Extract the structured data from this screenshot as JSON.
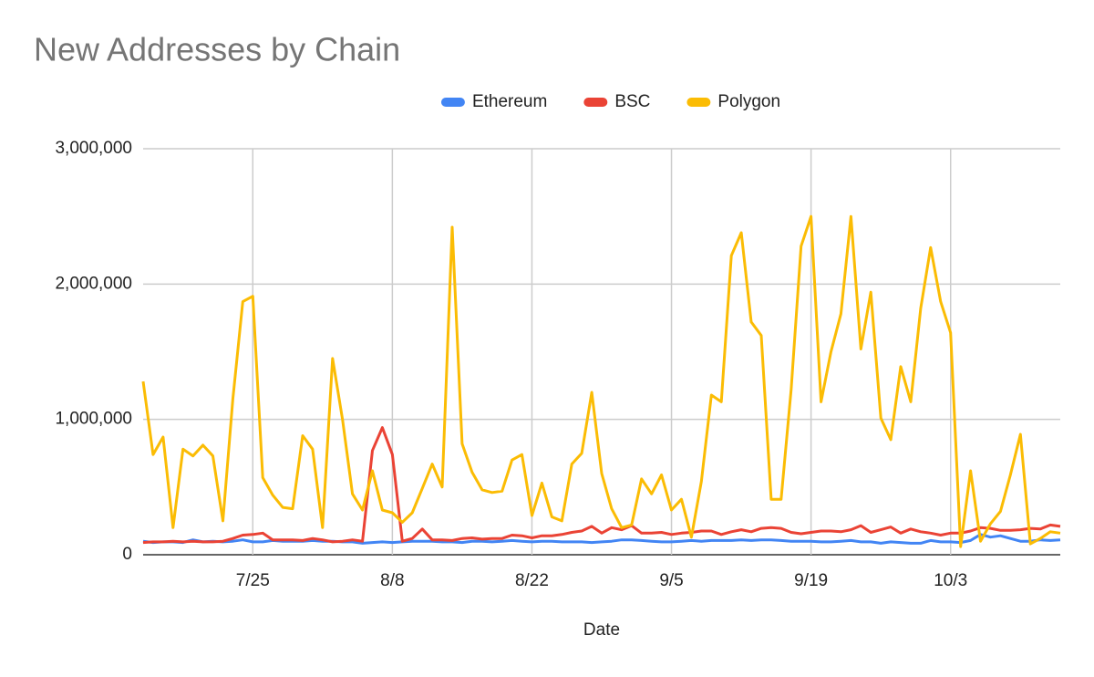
{
  "chart_data": {
    "type": "line",
    "title": "New Addresses by Chain",
    "x_label": "Date",
    "categories": [
      null,
      null,
      null,
      null,
      null,
      null,
      null,
      null,
      null,
      null,
      null,
      "7/25",
      null,
      null,
      null,
      null,
      null,
      null,
      null,
      null,
      null,
      null,
      null,
      null,
      null,
      "8/8",
      null,
      null,
      null,
      null,
      null,
      null,
      null,
      null,
      null,
      null,
      null,
      null,
      null,
      "8/22",
      null,
      null,
      null,
      null,
      null,
      null,
      null,
      null,
      null,
      null,
      null,
      null,
      null,
      "9/5",
      null,
      null,
      null,
      null,
      null,
      null,
      null,
      null,
      null,
      null,
      null,
      null,
      null,
      "9/19",
      null,
      null,
      null,
      null,
      null,
      null,
      null,
      null,
      null,
      null,
      null,
      null,
      null,
      "10/3",
      null,
      null,
      null,
      null,
      null,
      null,
      null,
      null,
      null,
      null,
      null
    ],
    "series": [
      {
        "name": "Ethereum",
        "color": "#4285f4",
        "values": [
          100000,
          90000,
          95000,
          95000,
          90000,
          110000,
          95000,
          100000,
          95000,
          100000,
          110000,
          95000,
          95000,
          105000,
          100000,
          100000,
          100000,
          105000,
          100000,
          100000,
          95000,
          95000,
          85000,
          90000,
          95000,
          90000,
          95000,
          100000,
          100000,
          100000,
          95000,
          95000,
          90000,
          100000,
          100000,
          95000,
          100000,
          105000,
          100000,
          95000,
          100000,
          100000,
          95000,
          95000,
          95000,
          90000,
          95000,
          100000,
          110000,
          110000,
          105000,
          100000,
          95000,
          95000,
          100000,
          105000,
          100000,
          105000,
          105000,
          105000,
          110000,
          105000,
          110000,
          110000,
          105000,
          100000,
          100000,
          100000,
          95000,
          95000,
          100000,
          105000,
          95000,
          95000,
          85000,
          95000,
          90000,
          85000,
          85000,
          105000,
          95000,
          95000,
          90000,
          105000,
          150000,
          130000,
          140000,
          120000,
          100000,
          100000,
          110000,
          105000,
          110000
        ]
      },
      {
        "name": "BSC",
        "color": "#ea4335",
        "values": [
          90000,
          95000,
          95000,
          100000,
          95000,
          100000,
          95000,
          95000,
          100000,
          120000,
          145000,
          150000,
          160000,
          110000,
          110000,
          110000,
          105000,
          120000,
          110000,
          95000,
          100000,
          110000,
          100000,
          770000,
          940000,
          740000,
          100000,
          120000,
          190000,
          110000,
          110000,
          105000,
          120000,
          125000,
          115000,
          120000,
          120000,
          145000,
          140000,
          125000,
          140000,
          140000,
          150000,
          165000,
          175000,
          210000,
          160000,
          200000,
          185000,
          215000,
          160000,
          160000,
          165000,
          150000,
          160000,
          165000,
          175000,
          175000,
          150000,
          170000,
          185000,
          170000,
          195000,
          200000,
          195000,
          165000,
          155000,
          165000,
          175000,
          175000,
          170000,
          185000,
          215000,
          165000,
          185000,
          205000,
          160000,
          190000,
          170000,
          160000,
          145000,
          160000,
          160000,
          175000,
          200000,
          195000,
          180000,
          180000,
          185000,
          195000,
          190000,
          220000,
          210000
        ]
      },
      {
        "name": "Polygon",
        "color": "#fbbc04",
        "values": [
          1280000,
          740000,
          870000,
          200000,
          780000,
          730000,
          810000,
          730000,
          250000,
          1150000,
          1870000,
          1910000,
          570000,
          440000,
          350000,
          340000,
          880000,
          780000,
          200000,
          1450000,
          1000000,
          450000,
          330000,
          620000,
          330000,
          310000,
          240000,
          310000,
          490000,
          670000,
          500000,
          2420000,
          820000,
          610000,
          480000,
          460000,
          470000,
          700000,
          740000,
          290000,
          530000,
          280000,
          250000,
          670000,
          750000,
          1200000,
          600000,
          340000,
          200000,
          220000,
          560000,
          450000,
          590000,
          330000,
          410000,
          130000,
          540000,
          1180000,
          1130000,
          2210000,
          2380000,
          1720000,
          1620000,
          410000,
          410000,
          1220000,
          2280000,
          2500000,
          1130000,
          1500000,
          1780000,
          2500000,
          1520000,
          1940000,
          1010000,
          850000,
          1390000,
          1130000,
          1820000,
          2270000,
          1870000,
          1640000,
          60000,
          620000,
          100000,
          230000,
          320000,
          590000,
          890000,
          80000,
          120000,
          170000,
          160000
        ]
      }
    ],
    "ylim": [
      0,
      3000000
    ],
    "yticks": [
      0,
      {
        "value": 1000000,
        "label": "1,000,000"
      },
      {
        "value": 2000000,
        "label": "2,000,000"
      },
      {
        "value": 3000000,
        "label": "3,000,000"
      }
    ],
    "grid": true,
    "legend": "top"
  }
}
